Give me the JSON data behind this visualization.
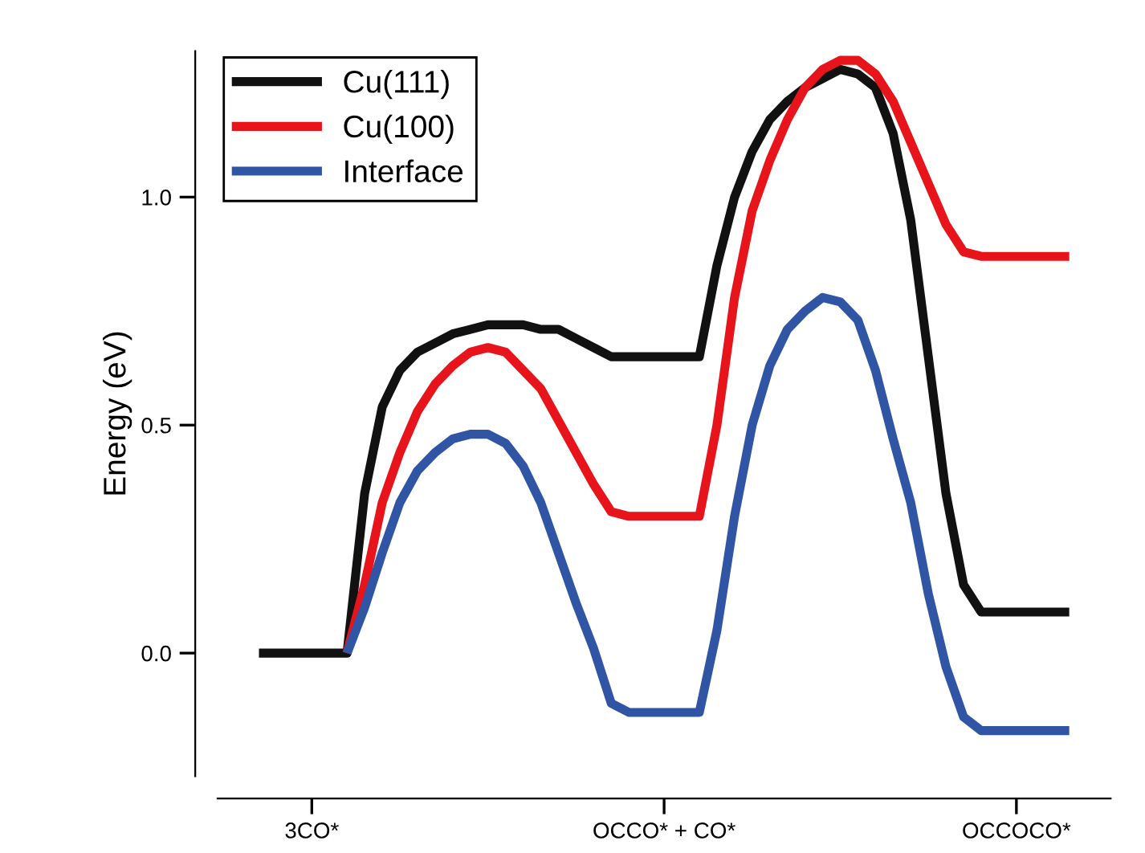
{
  "chart_data": {
    "type": "line",
    "ylabel": "Energy (eV)",
    "ylim": [
      -0.27,
      1.32
    ],
    "categories": [
      null,
      null,
      null,
      "3CO*",
      null,
      null,
      null,
      null,
      null,
      null,
      null,
      null,
      null,
      null,
      null,
      null,
      null,
      null,
      null,
      null,
      null,
      null,
      null,
      "OCCO* + CO*",
      null,
      null,
      null,
      null,
      null,
      null,
      null,
      null,
      null,
      null,
      null,
      null,
      null,
      null,
      null,
      null,
      null,
      null,
      null,
      "OCCOCO*",
      null,
      null,
      null
    ],
    "yticks": [
      {
        "value": 0,
        "label": "0.0"
      },
      {
        "value": 0.5,
        "label": "0.5"
      },
      {
        "value": 1,
        "label": "1.0"
      }
    ],
    "grid": false,
    "legend": "top left",
    "marker": "none",
    "line_style": "solid",
    "series": [
      {
        "name": "Cu(111)",
        "color": "#111111",
        "values": [
          0,
          0,
          0,
          0,
          0,
          0,
          0.35,
          0.54,
          0.62,
          0.66,
          0.68,
          0.7,
          0.71,
          0.72,
          0.72,
          0.72,
          0.71,
          0.71,
          0.69,
          0.67,
          0.65,
          0.65,
          0.65,
          0.65,
          0.65,
          0.65,
          0.85,
          1.0,
          1.1,
          1.17,
          1.21,
          1.24,
          1.26,
          1.28,
          1.27,
          1.24,
          1.14,
          0.95,
          0.65,
          0.35,
          0.15,
          0.09,
          0.09,
          0.09,
          0.09,
          0.09,
          0.09
        ]
      },
      {
        "name": "Cu(100)",
        "color": "#e8141c",
        "values": [
          null,
          null,
          null,
          null,
          null,
          0,
          0.15,
          0.33,
          0.44,
          0.53,
          0.59,
          0.63,
          0.66,
          0.67,
          0.66,
          0.62,
          0.58,
          0.51,
          0.44,
          0.37,
          0.31,
          0.3,
          0.3,
          0.3,
          0.3,
          0.3,
          0.5,
          0.78,
          0.97,
          1.08,
          1.17,
          1.24,
          1.28,
          1.3,
          1.3,
          1.27,
          1.21,
          1.12,
          1.03,
          0.94,
          0.88,
          0.87,
          0.87,
          0.87,
          0.87,
          0.87,
          0.87
        ]
      },
      {
        "name": "Interface",
        "color": "#2f55a4",
        "values": [
          null,
          null,
          null,
          null,
          null,
          0,
          0.1,
          0.22,
          0.33,
          0.4,
          0.44,
          0.47,
          0.48,
          0.48,
          0.46,
          0.41,
          0.33,
          0.22,
          0.11,
          0.01,
          -0.11,
          -0.13,
          -0.13,
          -0.13,
          -0.13,
          -0.13,
          0.05,
          0.3,
          0.5,
          0.63,
          0.71,
          0.75,
          0.78,
          0.77,
          0.73,
          0.62,
          0.47,
          0.33,
          0.13,
          -0.03,
          -0.14,
          -0.17,
          -0.17,
          -0.17,
          -0.17,
          -0.17,
          -0.17
        ]
      }
    ]
  }
}
